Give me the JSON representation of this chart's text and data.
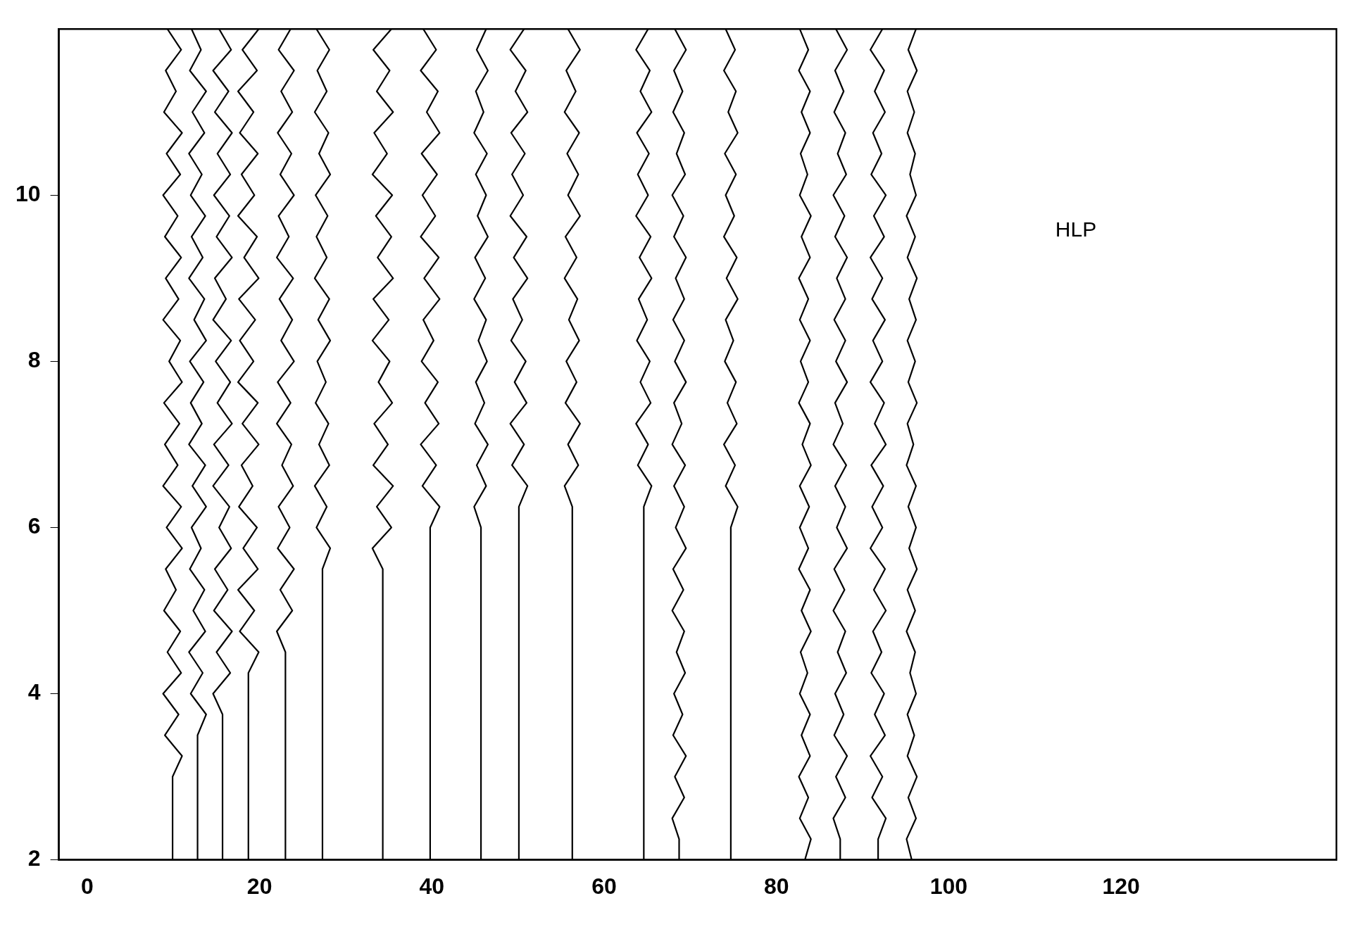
{
  "chart_data": {
    "type": "line",
    "xlim": [
      -3.3,
      145
    ],
    "xticks": [
      0,
      20,
      40,
      60,
      80,
      100,
      120
    ],
    "ylim": [
      2,
      12
    ],
    "yticks": [
      2,
      4,
      6,
      8,
      10
    ],
    "grid": false,
    "legend": false,
    "marker": "none",
    "annotations": [
      "HLP"
    ],
    "series": [
      {
        "color": "#000000",
        "x": [
          9.9,
          9.9,
          11.0,
          9.0,
          10.6,
          8.8,
          10.9,
          9.3,
          10.8,
          8.9,
          10.3,
          9.1,
          11.0,
          9.2,
          10.9,
          8.8,
          10.5,
          9.0,
          10.7,
          8.9,
          11.0,
          9.5,
          10.8,
          8.8,
          10.6,
          9.1,
          10.9,
          9.0,
          10.5,
          8.8,
          10.8,
          9.2,
          11.0,
          8.9,
          10.3,
          9.1,
          10.9,
          9.3
        ],
        "values": [
          2,
          3,
          3.25,
          3.5,
          3.75,
          4,
          4.25,
          4.5,
          4.75,
          5,
          5.25,
          5.5,
          5.75,
          6,
          6.25,
          6.5,
          6.75,
          7,
          7.25,
          7.5,
          7.75,
          8,
          8.25,
          8.5,
          8.75,
          9,
          9.25,
          9.5,
          9.75,
          10,
          10.25,
          10.5,
          10.75,
          11,
          11.25,
          11.5,
          11.75,
          12
        ]
      },
      {
        "color": "#000000",
        "x": [
          12.8,
          12.8,
          13.8,
          12.0,
          13.4,
          11.8,
          13.7,
          12.3,
          13.6,
          11.9,
          13.2,
          12.1,
          13.8,
          12.2,
          13.7,
          11.8,
          13.3,
          12.0,
          13.5,
          11.9,
          13.8,
          12.4,
          13.6,
          11.8,
          13.4,
          12.1,
          13.7,
          12.0,
          13.3,
          11.8,
          13.6,
          12.2,
          13.8,
          11.9,
          13.2,
          12.1
        ],
        "values": [
          2,
          3.5,
          3.75,
          4,
          4.25,
          4.5,
          4.75,
          5,
          5.25,
          5.5,
          5.75,
          6,
          6.25,
          6.5,
          6.75,
          7,
          7.25,
          7.5,
          7.75,
          8,
          8.25,
          8.5,
          8.75,
          9,
          9.25,
          9.5,
          9.75,
          10,
          10.25,
          10.5,
          10.75,
          11,
          11.25,
          11.5,
          11.75,
          12
        ]
      },
      {
        "color": "#000000",
        "x": [
          15.7,
          15.7,
          14.6,
          16.6,
          15.0,
          16.8,
          14.7,
          16.3,
          14.8,
          16.7,
          15.3,
          16.5,
          14.6,
          16.4,
          14.7,
          16.8,
          15.1,
          16.6,
          14.9,
          16.7,
          14.6,
          16.1,
          14.8,
          16.8,
          15.0,
          16.5,
          14.7,
          16.6,
          15.1,
          16.8,
          14.8,
          16.4,
          14.6,
          16.7,
          15.3
        ],
        "values": [
          2,
          3.75,
          4,
          4.25,
          4.5,
          4.75,
          5,
          5.25,
          5.5,
          5.75,
          6,
          6.25,
          6.5,
          6.75,
          7,
          7.25,
          7.5,
          7.75,
          8,
          8.25,
          8.5,
          8.75,
          9,
          9.25,
          9.5,
          9.75,
          10,
          10.25,
          10.5,
          10.75,
          11,
          11.25,
          11.5,
          11.75,
          12
        ]
      },
      {
        "color": "#000000",
        "x": [
          18.7,
          18.7,
          19.9,
          17.7,
          19.4,
          17.5,
          19.8,
          18.1,
          19.7,
          17.6,
          19.2,
          17.9,
          19.9,
          18.0,
          19.8,
          17.5,
          19.3,
          17.7,
          19.5,
          17.6,
          19.9,
          18.2,
          19.7,
          17.5,
          19.4,
          17.9,
          19.8,
          17.7,
          19.3,
          17.5,
          19.7,
          18.0,
          19.9
        ],
        "values": [
          2,
          4.25,
          4.5,
          4.75,
          5,
          5.25,
          5.5,
          5.75,
          6,
          6.25,
          6.5,
          6.75,
          7,
          7.25,
          7.5,
          7.75,
          8,
          8.25,
          8.5,
          8.75,
          9,
          9.25,
          9.5,
          9.75,
          10,
          10.25,
          10.5,
          10.75,
          11,
          11.25,
          11.5,
          11.75,
          12
        ]
      },
      {
        "color": "#000000",
        "x": [
          23.0,
          23.0,
          22.0,
          23.8,
          22.4,
          24.0,
          22.1,
          23.5,
          22.2,
          23.9,
          22.6,
          23.7,
          22.0,
          23.6,
          22.1,
          24.0,
          22.5,
          23.8,
          22.3,
          23.9,
          22.0,
          23.4,
          22.2,
          24.0,
          22.4,
          23.7,
          22.1,
          23.8,
          22.5,
          24.0,
          22.2,
          23.6
        ],
        "values": [
          2,
          4.5,
          4.75,
          5,
          5.25,
          5.5,
          5.75,
          6,
          6.25,
          6.5,
          6.75,
          7,
          7.25,
          7.5,
          7.75,
          8,
          8.25,
          8.5,
          8.75,
          9,
          9.25,
          9.5,
          9.75,
          10,
          10.25,
          10.5,
          10.75,
          11,
          11.25,
          11.5,
          11.75,
          12
        ]
      },
      {
        "color": "#000000",
        "x": [
          27.3,
          27.3,
          28.2,
          26.6,
          27.8,
          26.4,
          28.1,
          26.9,
          28.0,
          26.5,
          27.7,
          26.7,
          28.2,
          26.8,
          28.1,
          26.4,
          27.8,
          26.6,
          27.9,
          26.5,
          28.2,
          26.9,
          28.0,
          26.4,
          27.8,
          26.7,
          28.1,
          26.6
        ],
        "values": [
          2,
          5.5,
          5.75,
          6,
          6.25,
          6.5,
          6.75,
          7,
          7.25,
          7.5,
          7.75,
          8,
          8.25,
          8.5,
          8.75,
          9,
          9.25,
          9.5,
          9.75,
          10,
          10.25,
          10.5,
          10.75,
          11,
          11.25,
          11.5,
          11.75,
          12
        ]
      },
      {
        "color": "#000000",
        "x": [
          34.3,
          34.3,
          33.1,
          35.3,
          33.6,
          35.5,
          33.2,
          34.9,
          33.3,
          35.4,
          33.8,
          35.1,
          33.1,
          35.0,
          33.2,
          35.5,
          33.7,
          35.3,
          33.5,
          35.4,
          33.1,
          34.8,
          33.3,
          35.5,
          33.6,
          35.1,
          33.2,
          35.3
        ],
        "values": [
          2,
          5.5,
          5.75,
          6,
          6.25,
          6.5,
          6.75,
          7,
          7.25,
          7.5,
          7.75,
          8,
          8.25,
          8.5,
          8.75,
          9,
          9.25,
          9.5,
          9.75,
          10,
          10.25,
          10.5,
          10.75,
          11,
          11.25,
          11.5,
          11.75,
          12
        ]
      },
      {
        "color": "#000000",
        "x": [
          39.8,
          39.8,
          40.9,
          38.9,
          40.5,
          38.7,
          40.8,
          39.2,
          40.7,
          38.8,
          40.2,
          39.0,
          40.9,
          39.1,
          40.8,
          38.7,
          40.4,
          38.9,
          40.6,
          38.8,
          40.9,
          39.4,
          40.7,
          38.7,
          40.5,
          39.0
        ],
        "values": [
          2,
          6,
          6.25,
          6.5,
          6.75,
          7,
          7.25,
          7.5,
          7.75,
          8,
          8.25,
          8.5,
          8.75,
          9,
          9.25,
          9.5,
          9.75,
          10,
          10.25,
          10.5,
          10.75,
          11,
          11.25,
          11.5,
          11.75,
          12
        ]
      },
      {
        "color": "#000000",
        "x": [
          45.7,
          45.7,
          44.9,
          46.3,
          45.2,
          46.5,
          45.0,
          46.1,
          45.1,
          46.4,
          45.4,
          46.3,
          44.9,
          46.2,
          45.0,
          46.5,
          45.3,
          46.3,
          45.1,
          46.4,
          44.9,
          46.0,
          45.1,
          46.5,
          45.2,
          46.3
        ],
        "values": [
          2,
          6,
          6.25,
          6.5,
          6.75,
          7,
          7.25,
          7.5,
          7.75,
          8,
          8.25,
          8.5,
          8.75,
          9,
          9.25,
          9.5,
          9.75,
          10,
          10.25,
          10.5,
          10.75,
          11,
          11.25,
          11.5,
          11.75,
          12
        ]
      },
      {
        "color": "#000000",
        "x": [
          50.1,
          50.1,
          51.1,
          49.3,
          50.7,
          49.1,
          51.0,
          49.6,
          50.9,
          49.2,
          50.5,
          49.4,
          51.1,
          49.5,
          51.0,
          49.1,
          50.6,
          49.3,
          50.8,
          49.2,
          51.1,
          49.7,
          50.9,
          49.1,
          50.7
        ],
        "values": [
          2,
          6.25,
          6.5,
          6.75,
          7,
          7.25,
          7.5,
          7.75,
          8,
          8.25,
          8.5,
          8.75,
          9,
          9.25,
          9.5,
          9.75,
          10,
          10.25,
          10.5,
          10.75,
          11,
          11.25,
          11.5,
          11.75,
          12
        ]
      },
      {
        "color": "#000000",
        "x": [
          56.3,
          56.3,
          55.4,
          57.0,
          55.8,
          57.2,
          55.5,
          56.8,
          55.6,
          57.1,
          55.9,
          56.9,
          55.4,
          56.8,
          55.5,
          57.2,
          55.8,
          57.0,
          55.7,
          57.1,
          55.4,
          56.7,
          55.6,
          57.2,
          55.8
        ],
        "values": [
          2,
          6.25,
          6.5,
          6.75,
          7,
          7.25,
          7.5,
          7.75,
          8,
          8.25,
          8.5,
          8.75,
          9,
          9.25,
          9.5,
          9.75,
          10,
          10.25,
          10.5,
          10.75,
          11,
          11.25,
          11.5,
          11.75,
          12
        ]
      },
      {
        "color": "#000000",
        "x": [
          64.6,
          64.6,
          65.5,
          63.9,
          65.1,
          63.7,
          65.4,
          64.2,
          65.3,
          63.8,
          65.0,
          64.0,
          65.5,
          64.1,
          65.4,
          63.7,
          65.1,
          63.9,
          65.2,
          63.8,
          65.5,
          64.2,
          65.3,
          63.7,
          65.1
        ],
        "values": [
          2,
          6.25,
          6.5,
          6.75,
          7,
          7.25,
          7.5,
          7.75,
          8,
          8.25,
          8.5,
          8.75,
          9,
          9.25,
          9.5,
          9.75,
          10,
          10.25,
          10.5,
          10.75,
          11,
          11.25,
          11.5,
          11.75,
          12
        ]
      },
      {
        "color": "#000000",
        "x": [
          68.7,
          68.7,
          67.9,
          69.3,
          68.2,
          69.5,
          68.0,
          69.1,
          68.1,
          69.4,
          68.4,
          69.3,
          67.9,
          69.2,
          68.0,
          69.5,
          68.3,
          69.3,
          68.1,
          69.4,
          67.9,
          69.0,
          68.1,
          69.5,
          68.2,
          69.3,
          68.0,
          69.3,
          68.3,
          69.5,
          68.1,
          69.2,
          67.9,
          69.4,
          68.4,
          69.3,
          68.0,
          69.1,
          68.1,
          69.5,
          68.2
        ],
        "values": [
          2,
          2.25,
          2.5,
          2.75,
          3,
          3.25,
          3.5,
          3.75,
          4,
          4.25,
          4.5,
          4.75,
          5,
          5.25,
          5.5,
          5.75,
          6,
          6.25,
          6.5,
          6.75,
          7,
          7.25,
          7.5,
          7.75,
          8,
          8.25,
          8.5,
          8.75,
          9,
          9.25,
          9.5,
          9.75,
          10,
          10.25,
          10.5,
          10.75,
          11,
          11.25,
          11.5,
          11.75,
          12
        ]
      },
      {
        "color": "#000000",
        "x": [
          74.7,
          74.7,
          75.5,
          74.1,
          75.2,
          73.9,
          75.4,
          74.3,
          75.3,
          74.0,
          75.0,
          74.1,
          75.5,
          74.2,
          75.4,
          73.9,
          75.1,
          74.1,
          75.3,
          74.0,
          75.5,
          74.4,
          75.3,
          73.9,
          75.2,
          74.1
        ],
        "values": [
          2,
          6,
          6.25,
          6.5,
          6.75,
          7,
          7.25,
          7.5,
          7.75,
          8,
          8.25,
          8.5,
          8.75,
          9,
          9.25,
          9.5,
          9.75,
          10,
          10.25,
          10.5,
          10.75,
          11,
          11.25,
          11.5,
          11.75,
          12
        ]
      },
      {
        "color": "#000000",
        "x": [
          83.3,
          84.0,
          82.7,
          83.7,
          82.6,
          83.9,
          82.9,
          83.9,
          82.7,
          83.6,
          82.8,
          84.0,
          82.9,
          83.9,
          82.6,
          83.7,
          82.7,
          83.8,
          82.7,
          84.0,
          83.0,
          83.9,
          82.6,
          83.7,
          82.8,
          83.9,
          82.7,
          83.7,
          82.6,
          83.9,
          82.9,
          84.0,
          82.7,
          83.6,
          82.8,
          83.9,
          82.9,
          83.9,
          82.6,
          83.7,
          82.7
        ],
        "values": [
          2,
          2.25,
          2.5,
          2.75,
          3,
          3.25,
          3.5,
          3.75,
          4,
          4.25,
          4.5,
          4.75,
          5,
          5.25,
          5.5,
          5.75,
          6,
          6.25,
          6.5,
          6.75,
          7,
          7.25,
          7.5,
          7.75,
          8,
          8.25,
          8.5,
          8.75,
          9,
          9.25,
          9.5,
          9.75,
          10,
          10.25,
          10.5,
          10.75,
          11,
          11.25,
          11.5,
          11.75,
          12
        ]
      },
      {
        "color": "#000000",
        "x": [
          87.4,
          87.4,
          86.6,
          88.0,
          86.9,
          88.2,
          86.7,
          87.8,
          86.8,
          88.1,
          87.1,
          88.0,
          86.6,
          87.9,
          86.7,
          88.2,
          87.0,
          88.0,
          86.8,
          88.1,
          86.6,
          87.7,
          86.8,
          88.2,
          86.9,
          88.0,
          86.7,
          88.0,
          87.0,
          88.2,
          86.8,
          87.9,
          86.6,
          88.1,
          87.1,
          88.0,
          86.7,
          87.8,
          86.8,
          88.2,
          86.9
        ],
        "values": [
          2,
          2.25,
          2.5,
          2.75,
          3,
          3.25,
          3.5,
          3.75,
          4,
          4.25,
          4.5,
          4.75,
          5,
          5.25,
          5.5,
          5.75,
          6,
          6.25,
          6.5,
          6.75,
          7,
          7.25,
          7.5,
          7.75,
          8,
          8.25,
          8.5,
          8.75,
          9,
          9.25,
          9.5,
          9.75,
          10,
          10.25,
          10.5,
          10.75,
          11,
          11.25,
          11.5,
          11.75,
          12
        ]
      },
      {
        "color": "#000000",
        "x": [
          91.8,
          91.8,
          92.7,
          91.1,
          92.3,
          90.9,
          92.6,
          91.4,
          92.5,
          91.0,
          92.2,
          91.2,
          92.7,
          91.3,
          92.6,
          90.9,
          92.3,
          91.1,
          92.4,
          91.0,
          92.7,
          91.4,
          92.5,
          90.9,
          92.3,
          91.2,
          92.6,
          91.1,
          92.3,
          90.9,
          92.5,
          91.3,
          92.7,
          91.0,
          92.2,
          91.2,
          92.6,
          91.4,
          92.5,
          90.9,
          92.3
        ],
        "values": [
          2,
          2.25,
          2.5,
          2.75,
          3,
          3.25,
          3.5,
          3.75,
          4,
          4.25,
          4.5,
          4.75,
          5,
          5.25,
          5.5,
          5.75,
          6,
          6.25,
          6.5,
          6.75,
          7,
          7.25,
          7.5,
          7.75,
          8,
          8.25,
          8.5,
          8.75,
          9,
          9.25,
          9.5,
          9.75,
          10,
          10.25,
          10.5,
          10.75,
          11,
          11.25,
          11.5,
          11.75,
          12
        ]
      },
      {
        "color": "#000000",
        "x": [
          95.7,
          95.1,
          96.2,
          95.3,
          96.3,
          95.2,
          96.0,
          95.2,
          96.2,
          95.5,
          96.1,
          95.1,
          96.1,
          95.2,
          96.3,
          95.4,
          96.2,
          95.3,
          96.2,
          95.1,
          95.9,
          95.2,
          96.3,
          95.3,
          96.1,
          95.2,
          96.2,
          95.4,
          96.3,
          95.2,
          96.1,
          95.1,
          96.2,
          95.5,
          96.1,
          95.2,
          96.0,
          95.2,
          96.3,
          95.3,
          96.2
        ],
        "values": [
          2,
          2.25,
          2.5,
          2.75,
          3,
          3.25,
          3.5,
          3.75,
          4,
          4.25,
          4.5,
          4.75,
          5,
          5.25,
          5.5,
          5.75,
          6,
          6.25,
          6.5,
          6.75,
          7,
          7.25,
          7.5,
          7.75,
          8,
          8.25,
          8.5,
          8.75,
          9,
          9.25,
          9.5,
          9.75,
          10,
          10.25,
          10.5,
          10.75,
          11,
          11.25,
          11.5,
          11.75,
          12
        ]
      }
    ]
  }
}
